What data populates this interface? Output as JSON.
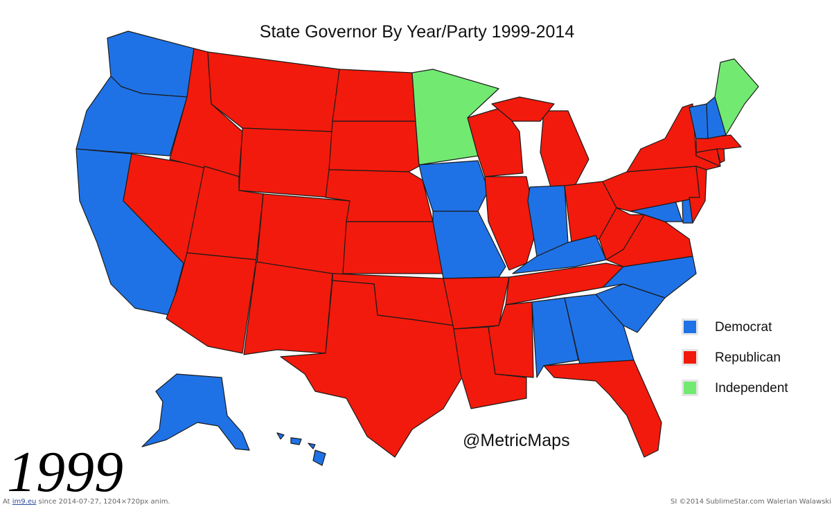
{
  "title": "State Governor By Year/Party 1999-2014",
  "year": "1999",
  "handle": "@MetricMaps",
  "colors": {
    "democrat": "#1f72e6",
    "republican": "#f21a0c",
    "independent": "#72ea72",
    "border": "#1a1a1a"
  },
  "legend": [
    {
      "label": "Democrat",
      "party": "democrat"
    },
    {
      "label": "Republican",
      "party": "republican"
    },
    {
      "label": "Independent",
      "party": "independent"
    }
  ],
  "states": {
    "WA": "democrat",
    "OR": "democrat",
    "CA": "democrat",
    "NV": "republican",
    "ID": "republican",
    "MT": "republican",
    "WY": "republican",
    "UT": "republican",
    "AZ": "republican",
    "CO": "republican",
    "NM": "republican",
    "ND": "republican",
    "SD": "republican",
    "NE": "republican",
    "KS": "republican",
    "OK": "republican",
    "TX": "republican",
    "MN": "independent",
    "IA": "democrat",
    "MO": "democrat",
    "AR": "republican",
    "LA": "republican",
    "WI": "republican",
    "IL": "republican",
    "MI": "republican",
    "IN": "democrat",
    "OH": "republican",
    "KY": "democrat",
    "TN": "republican",
    "MS": "republican",
    "AL": "democrat",
    "GA": "democrat",
    "FL": "republican",
    "SC": "democrat",
    "NC": "democrat",
    "VA": "republican",
    "WV": "republican",
    "MD": "democrat",
    "DE": "democrat",
    "PA": "republican",
    "NJ": "republican",
    "NY": "republican",
    "CT": "republican",
    "RI": "republican",
    "MA": "republican",
    "VT": "democrat",
    "NH": "democrat",
    "ME": "independent",
    "AK": "democrat",
    "HI": "democrat"
  },
  "footer": {
    "prefix": "At",
    "link": "im9.eu",
    "suffix": "since 2014-07-27, 1204×720px anim.",
    "right": "SI ©2014 SublimeStar.com Walerian Walawski"
  }
}
